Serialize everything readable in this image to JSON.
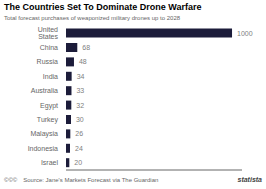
{
  "chart_data": {
    "type": "bar",
    "orientation": "horizontal",
    "title": "The Countries Set To Dominate Drone Warfare",
    "subtitle": "Total forecast purchases of weaponized military drones up to 2028",
    "categories": [
      "United States",
      "China",
      "Russia",
      "India",
      "Australia",
      "Egypt",
      "Turkey",
      "Malaysia",
      "Indonesia",
      "Israel"
    ],
    "values": [
      1000,
      68,
      48,
      34,
      33,
      32,
      30,
      26,
      24,
      20
    ],
    "color": "#1c1c3a",
    "xlim": [
      0,
      1060
    ],
    "data_labels": true,
    "tick_labels": "y",
    "grid": false,
    "annotations": [
      "Source: Jane's Markets Forecast via The Guardian",
      "statista",
      "©©©"
    ]
  }
}
